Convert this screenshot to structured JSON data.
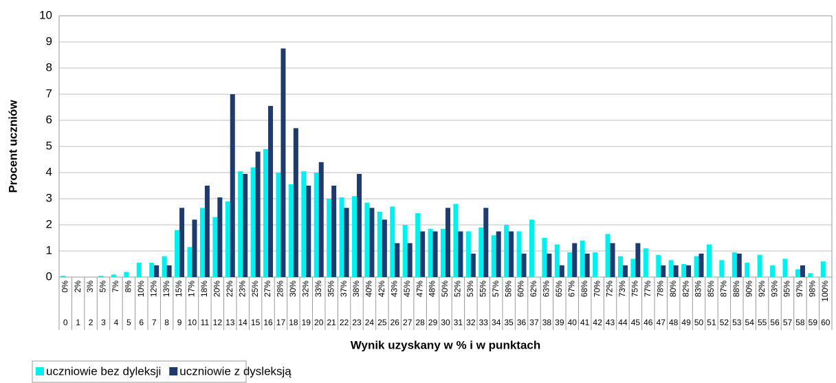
{
  "chart_data": {
    "type": "bar",
    "y_label": "Procent uczniów",
    "x_label": "Wynik uzyskany w % i w punktach",
    "categories": [
      "0",
      "1",
      "2",
      "3",
      "4",
      "5",
      "6",
      "7",
      "8",
      "9",
      "10",
      "11",
      "12",
      "13",
      "14",
      "15",
      "16",
      "17",
      "18",
      "19",
      "20",
      "21",
      "22",
      "23",
      "24",
      "25",
      "26",
      "27",
      "28",
      "29",
      "30",
      "31",
      "32",
      "33",
      "34",
      "35",
      "36",
      "37",
      "38",
      "39",
      "40",
      "41",
      "42",
      "43",
      "44",
      "45",
      "46",
      "47",
      "48",
      "49",
      "50",
      "51",
      "52",
      "53",
      "54",
      "55",
      "56",
      "57",
      "58",
      "59",
      "60"
    ],
    "percent_labels": [
      "0%",
      "2%",
      "3%",
      "5%",
      "7%",
      "8%",
      "10%",
      "12%",
      "13%",
      "15%",
      "17%",
      "18%",
      "20%",
      "22%",
      "23%",
      "25%",
      "27%",
      "28%",
      "30%",
      "32%",
      "33%",
      "35%",
      "37%",
      "38%",
      "40%",
      "42%",
      "43%",
      "45%",
      "47%",
      "48%",
      "50%",
      "52%",
      "53%",
      "55%",
      "57%",
      "58%",
      "60%",
      "62%",
      "63%",
      "65%",
      "67%",
      "68%",
      "70%",
      "72%",
      "73%",
      "75%",
      "77%",
      "78%",
      "80%",
      "82%",
      "83%",
      "85%",
      "87%",
      "88%",
      "90%",
      "92%",
      "93%",
      "95%",
      "97%",
      "98%",
      "100%"
    ],
    "series": [
      {
        "name": "uczniowie bez dyleksji",
        "color": "#00f0f0",
        "values": [
          0.05,
          0,
          0,
          0.05,
          0.1,
          0.2,
          0.55,
          0.55,
          0.8,
          1.8,
          1.15,
          2.65,
          2.3,
          2.9,
          4.05,
          4.2,
          4.9,
          4.0,
          3.55,
          4.05,
          4.0,
          3.0,
          3.05,
          3.1,
          2.85,
          2.5,
          2.7,
          2.0,
          2.45,
          1.85,
          1.85,
          2.8,
          1.75,
          1.9,
          1.6,
          2.0,
          1.75,
          2.2,
          1.5,
          1.25,
          0.95,
          1.4,
          0.95,
          1.65,
          0.8,
          0.7,
          1.1,
          0.85,
          0.65,
          0.5,
          0.8,
          1.25,
          0.65,
          0.95,
          0.55,
          0.85,
          0.45,
          0.7,
          0.3,
          0.15,
          0.6
        ]
      },
      {
        "name": "uczniowie z dysleksją",
        "color": "#1f3b6e",
        "values": [
          0,
          0,
          0,
          0,
          0,
          0,
          0,
          0.45,
          0.45,
          2.65,
          2.2,
          3.5,
          3.05,
          7.0,
          3.95,
          4.8,
          6.55,
          8.75,
          5.7,
          3.5,
          4.4,
          3.5,
          2.65,
          3.95,
          2.65,
          2.2,
          1.3,
          1.3,
          1.75,
          1.75,
          2.65,
          1.75,
          0.9,
          2.65,
          1.75,
          1.75,
          0.9,
          0,
          0.9,
          0.45,
          1.3,
          0.9,
          0,
          1.3,
          0.45,
          1.3,
          0,
          0.45,
          0.45,
          0.45,
          0.9,
          0,
          0,
          0.9,
          0,
          0,
          0,
          0,
          0.45,
          0,
          0
        ]
      }
    ],
    "ylim": [
      0,
      10
    ],
    "yticks": [
      0,
      1,
      2,
      3,
      4,
      5,
      6,
      7,
      8,
      9,
      10
    ],
    "grid": true
  }
}
